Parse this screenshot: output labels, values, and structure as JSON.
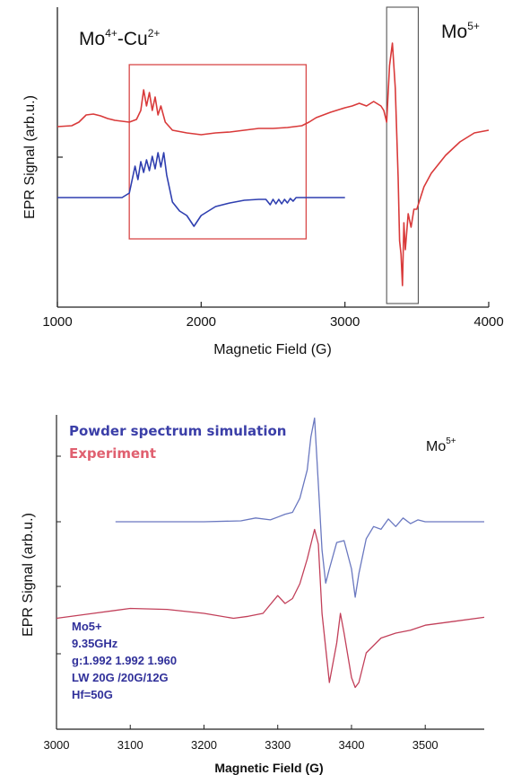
{
  "colors": {
    "red": "#d93a3a",
    "blue": "#2f3fb0",
    "pink": "#c2405a",
    "lightblue": "#6a78c0",
    "box_red": "#d84848",
    "box_dark": "#555555"
  },
  "chart_data": [
    {
      "type": "line",
      "xlabel": "Magnetic Field (G)",
      "ylabel": "EPR Signal (arb.u.)",
      "xlim": [
        1000,
        4000
      ],
      "xticks": [
        "1000",
        "2000",
        "3000",
        "4000"
      ],
      "label_mo4cu2": {
        "base1": "Mo",
        "sup1": "4+",
        "mid": "-Cu",
        "sup2": "2+"
      },
      "label_mo5": {
        "base": "Mo",
        "sup": "5+"
      },
      "highlight_boxes": [
        {
          "x_range": [
            1500,
            2730
          ],
          "color": "red"
        },
        {
          "x_range": [
            3290,
            3510
          ],
          "color": "dark"
        }
      ],
      "series": [
        {
          "color": "red",
          "x": [
            1000,
            1100,
            1150,
            1200,
            1250,
            1300,
            1350,
            1400,
            1450,
            1500,
            1550,
            1580,
            1600,
            1620,
            1640,
            1660,
            1680,
            1700,
            1720,
            1750,
            1800,
            1900,
            2000,
            2100,
            2200,
            2300,
            2400,
            2500,
            2600,
            2700,
            2750,
            2800,
            2900,
            3000,
            3050,
            3100,
            3150,
            3200,
            3250,
            3270,
            3290,
            3310,
            3330,
            3350,
            3370,
            3380,
            3390,
            3400,
            3410,
            3420,
            3440,
            3460,
            3480,
            3500,
            3550,
            3600,
            3700,
            3800,
            3900,
            4000
          ],
          "y": [
            0.37,
            0.38,
            0.42,
            0.5,
            0.51,
            0.49,
            0.46,
            0.44,
            0.43,
            0.42,
            0.45,
            0.55,
            0.78,
            0.6,
            0.75,
            0.55,
            0.7,
            0.5,
            0.6,
            0.42,
            0.33,
            0.3,
            0.28,
            0.3,
            0.31,
            0.33,
            0.35,
            0.35,
            0.36,
            0.38,
            0.42,
            0.47,
            0.53,
            0.58,
            0.6,
            0.63,
            0.6,
            0.65,
            0.6,
            0.55,
            0.42,
            1.05,
            1.3,
            0.8,
            -0.2,
            -0.9,
            -1.05,
            -1.4,
            -0.7,
            -1.0,
            -0.6,
            -0.75,
            -0.55,
            -0.55,
            -0.3,
            -0.15,
            0.05,
            0.2,
            0.3,
            0.33
          ]
        },
        {
          "color": "blue",
          "x": [
            1000,
            1450,
            1500,
            1520,
            1540,
            1560,
            1580,
            1600,
            1620,
            1640,
            1660,
            1680,
            1700,
            1720,
            1740,
            1760,
            1800,
            1850,
            1900,
            1950,
            2000,
            2100,
            2200,
            2300,
            2400,
            2450,
            2480,
            2500,
            2520,
            2540,
            2560,
            2580,
            2600,
            2620,
            2640,
            2660,
            2700,
            3000
          ],
          "y": [
            0.0,
            0.0,
            0.05,
            0.2,
            0.35,
            0.2,
            0.4,
            0.28,
            0.42,
            0.3,
            0.46,
            0.32,
            0.5,
            0.34,
            0.5,
            0.25,
            -0.05,
            -0.15,
            -0.2,
            -0.32,
            -0.2,
            -0.1,
            -0.06,
            -0.03,
            -0.02,
            -0.02,
            -0.08,
            -0.02,
            -0.07,
            -0.02,
            -0.07,
            -0.02,
            -0.06,
            -0.01,
            -0.04,
            0.0,
            0.0,
            0.0
          ]
        }
      ]
    },
    {
      "type": "line",
      "xlabel": "Magnetic Field (G)",
      "ylabel": "EPR Signal (arb.u.)",
      "xlim": [
        3000,
        3580
      ],
      "xticks": [
        "3000",
        "3100",
        "3200",
        "3300",
        "3400",
        "3500"
      ],
      "label_mo5": {
        "base": "Mo",
        "sup": "5+"
      },
      "legend": [
        "Powder spectrum simulation",
        "Experiment"
      ],
      "params": [
        "Mo5+",
        "9.35GHz",
        "g:1.992 1.992 1.960",
        "LW 20G /20G/12G",
        "Hf=50G"
      ],
      "series": [
        {
          "name": "Powder spectrum simulation",
          "color": "lightblue",
          "x": [
            3080,
            3200,
            3250,
            3270,
            3290,
            3300,
            3310,
            3320,
            3330,
            3340,
            3345,
            3350,
            3355,
            3360,
            3365,
            3370,
            3380,
            3390,
            3400,
            3405,
            3410,
            3420,
            3430,
            3440,
            3450,
            3460,
            3470,
            3480,
            3490,
            3500,
            3580
          ],
          "y": [
            0,
            0,
            0.01,
            0.04,
            0.02,
            0.05,
            0.08,
            0.1,
            0.25,
            0.55,
            0.9,
            1.1,
            0.4,
            -0.3,
            -0.65,
            -0.5,
            -0.22,
            -0.2,
            -0.5,
            -0.8,
            -0.55,
            -0.18,
            -0.05,
            -0.08,
            0.03,
            -0.05,
            0.04,
            -0.02,
            0.02,
            0,
            0
          ]
        },
        {
          "name": "Experiment",
          "color": "pink",
          "x": [
            3000,
            3050,
            3100,
            3150,
            3200,
            3240,
            3260,
            3280,
            3300,
            3310,
            3320,
            3330,
            3340,
            3350,
            3355,
            3360,
            3370,
            3380,
            3385,
            3390,
            3400,
            3405,
            3410,
            3420,
            3440,
            3460,
            3480,
            3500,
            3540,
            3580
          ],
          "y": [
            0.15,
            0.2,
            0.25,
            0.24,
            0.2,
            0.15,
            0.17,
            0.2,
            0.38,
            0.3,
            0.35,
            0.5,
            0.75,
            1.05,
            0.9,
            0.2,
            -0.5,
            -0.1,
            0.2,
            0.0,
            -0.45,
            -0.55,
            -0.5,
            -0.2,
            -0.05,
            0.0,
            0.03,
            0.08,
            0.12,
            0.16
          ]
        }
      ]
    }
  ]
}
